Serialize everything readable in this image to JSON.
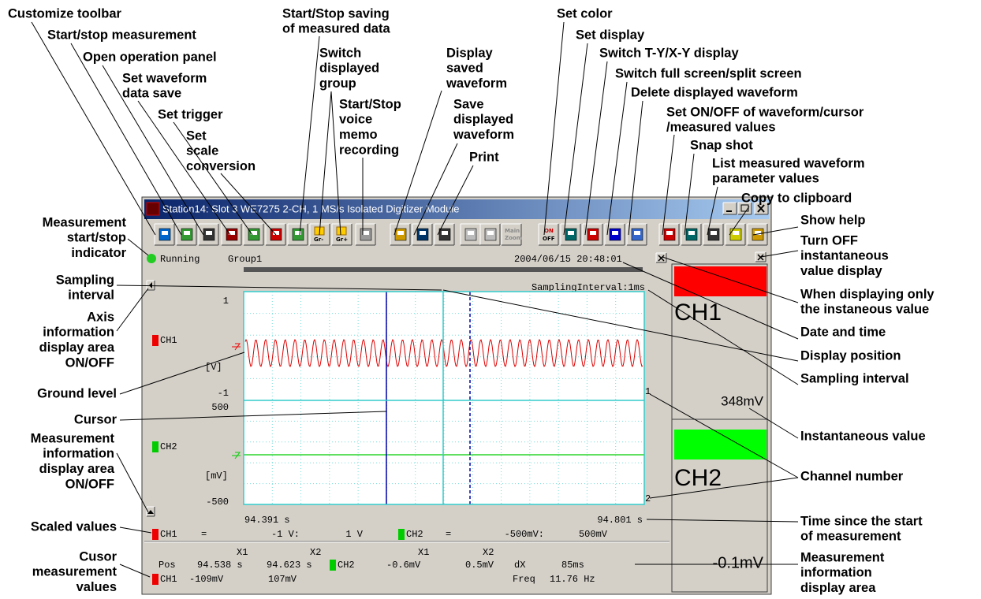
{
  "window": {
    "title": "Station14: Slot 3 WE7275 2-CH, 1 MS/s Isolated Digitizer Module",
    "toolbar": {
      "group_down": "Gr-",
      "group_up": "Gr+",
      "main_zoom": [
        "Main",
        "Zoom"
      ],
      "on_off": [
        "ON",
        "OFF"
      ]
    }
  },
  "status": {
    "state": "Running",
    "group": "Group1",
    "datetime": "2004/06/15 20:48:01",
    "sampling": "SamplingInterval:1ms"
  },
  "channels": [
    {
      "name": "CH1",
      "top": "1",
      "unit": "[V]",
      "bottom": "-1",
      "number": "1"
    },
    {
      "name": "CH2",
      "top": "500",
      "unit": "[mV]",
      "bottom": "-500",
      "number": "2"
    }
  ],
  "time": {
    "start": "94.391 s",
    "end": "94.801 s"
  },
  "scaled": [
    {
      "name": "CH1",
      "eq": "=",
      "low": "-1 V:",
      "high": "1 V"
    },
    {
      "name": "CH2",
      "eq": "=",
      "low": "-500mV:",
      "high": "500mV"
    }
  ],
  "measurement": {
    "header": [
      "X1",
      "X2",
      "X1",
      "X2"
    ],
    "row1": [
      "Pos",
      "94.538 s",
      "94.623 s",
      "CH2",
      "-0.6mV",
      "0.5mV",
      "dX",
      "85ms"
    ],
    "row2": [
      "CH1",
      "-109mV",
      "107mV",
      "Freq",
      "11.76 Hz"
    ]
  },
  "instant": [
    {
      "name": "CH1",
      "value": "348mV"
    },
    {
      "name": "CH2",
      "value": "-0.1mV"
    }
  ],
  "annotations": [
    {
      "lines": [
        "Customize toolbar"
      ]
    },
    {
      "lines": [
        "Start/stop measurement"
      ]
    },
    {
      "lines": [
        "Open operation panel"
      ]
    },
    {
      "lines": [
        "Set waveform",
        "data save"
      ]
    },
    {
      "lines": [
        "Set trigger"
      ]
    },
    {
      "lines": [
        "Set",
        "scale",
        "conversion"
      ]
    },
    {
      "lines": [
        "Start/Stop saving",
        "of measured data"
      ]
    },
    {
      "lines": [
        "Switch",
        "displayed",
        "group"
      ]
    },
    {
      "lines": [
        "Start/Stop",
        "voice",
        "memo",
        "recording"
      ]
    },
    {
      "lines": [
        "Display",
        "saved",
        "waveform"
      ]
    },
    {
      "lines": [
        "Save",
        "displayed",
        "waveform"
      ]
    },
    {
      "lines": [
        "Print"
      ]
    },
    {
      "lines": [
        "Set color"
      ]
    },
    {
      "lines": [
        "Set display"
      ]
    },
    {
      "lines": [
        "Switch T-Y/X-Y display"
      ]
    },
    {
      "lines": [
        "Switch full screen/split screen"
      ]
    },
    {
      "lines": [
        "Delete displayed waveform"
      ]
    },
    {
      "lines": [
        "Set ON/OFF of waveform/cursor",
        "/measured values"
      ]
    },
    {
      "lines": [
        "Snap shot"
      ]
    },
    {
      "lines": [
        "List measured waveform",
        "parameter values"
      ]
    },
    {
      "lines": [
        "Copy to clipboard"
      ]
    },
    {
      "lines": [
        "Show help"
      ]
    },
    {
      "lines": [
        "Turn OFF",
        "instantaneous",
        "value display"
      ]
    },
    {
      "lines": [
        "When displaying only",
        "the instaneous value"
      ]
    },
    {
      "lines": [
        "Date and time"
      ]
    },
    {
      "lines": [
        "Display position"
      ]
    },
    {
      "lines": [
        "Sampling interval"
      ]
    },
    {
      "lines": [
        "Instantaneous value"
      ]
    },
    {
      "lines": [
        "Channel number"
      ]
    },
    {
      "lines": [
        "Time since the start",
        "of measurement"
      ]
    },
    {
      "lines": [
        "Measurement",
        "information",
        "display area"
      ]
    },
    {
      "lines": [
        "Measurement",
        "start/stop",
        "indicator"
      ]
    },
    {
      "lines": [
        "Sampling",
        "interval"
      ]
    },
    {
      "lines": [
        "Axis",
        "information",
        "display area",
        "ON/OFF"
      ]
    },
    {
      "lines": [
        "Ground level"
      ]
    },
    {
      "lines": [
        "Cursor"
      ]
    },
    {
      "lines": [
        "Measurement",
        "information",
        "display area",
        "ON/OFF"
      ]
    },
    {
      "lines": [
        "Scaled values"
      ]
    },
    {
      "lines": [
        "Cusor",
        "measurement",
        "values"
      ]
    }
  ]
}
